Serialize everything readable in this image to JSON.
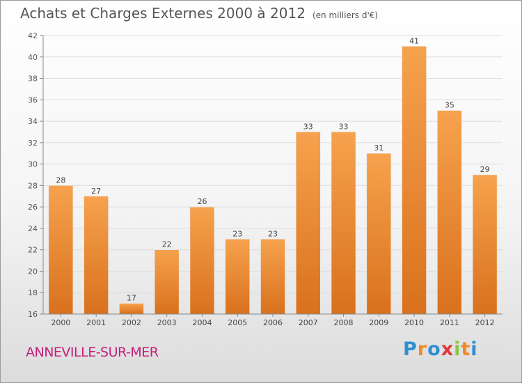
{
  "title": "Achats et Charges Externes 2000 à 2012",
  "unit": "(en milliers d'€)",
  "commune": "ANNEVILLE-SUR-MER",
  "logo": {
    "text": "Proxiti",
    "letters": [
      "P",
      "r",
      "o",
      "x",
      "i",
      "t",
      "i"
    ],
    "colors": [
      "#2f8fd0",
      "#f08a24",
      "#2f8fd0",
      "#e23a3a",
      "#8cc63f",
      "#f08a24",
      "#2f8fd0"
    ]
  },
  "colors": {
    "bar_top": "#f6a24e",
    "bar_bottom": "#d9711d",
    "commune": "#c21f7a",
    "text": "#555555"
  },
  "chart_data": {
    "type": "bar",
    "title": "Achats et Charges Externes 2000 à 2012",
    "subtitle": "(en milliers d'€)",
    "categories": [
      "2000",
      "2001",
      "2002",
      "2003",
      "2004",
      "2005",
      "2006",
      "2007",
      "2008",
      "2009",
      "2010",
      "2011",
      "2012"
    ],
    "values": [
      28,
      27,
      17,
      22,
      26,
      23,
      23,
      33,
      33,
      31,
      41,
      35,
      29
    ],
    "data_labels": [
      "28",
      "27",
      "17",
      "22",
      "26",
      "23",
      "23",
      "33",
      "33",
      "31",
      "41",
      "35",
      "29"
    ],
    "ylim": [
      16,
      42
    ],
    "yticks": [
      16,
      18,
      20,
      22,
      24,
      26,
      28,
      30,
      32,
      34,
      36,
      38,
      40,
      42
    ],
    "ytick_labels": [
      "16",
      "18",
      "20",
      "22",
      "24",
      "26",
      "28",
      "30",
      "32",
      "34",
      "36",
      "38",
      "40",
      "42"
    ],
    "grid": true
  }
}
